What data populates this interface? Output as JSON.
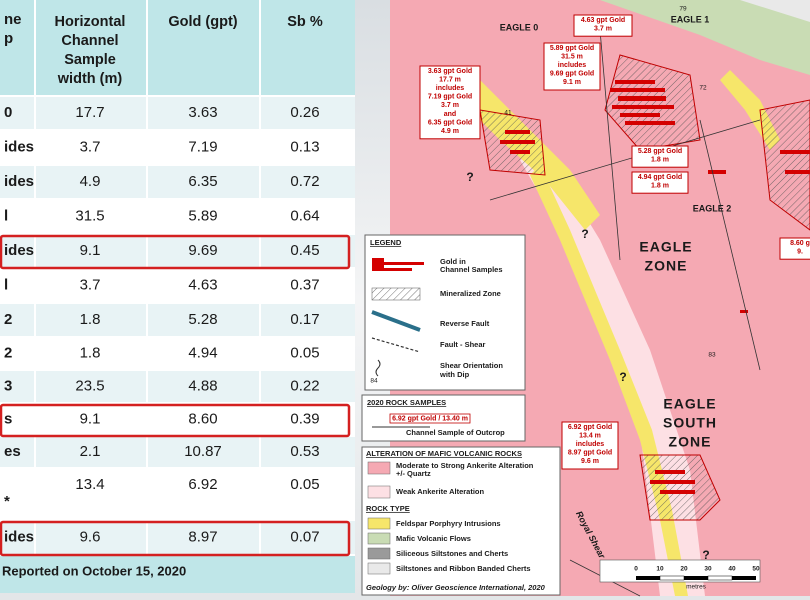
{
  "table": {
    "headers": [
      [
        "ne",
        "p"
      ],
      [
        "Horizontal",
        "Channel",
        "Sample",
        "width (m)"
      ],
      [
        "Gold (gpt)"
      ],
      [
        "Sb %"
      ]
    ],
    "rows": [
      [
        "0",
        "17.7",
        "3.63",
        "0.26"
      ],
      [
        "ides",
        "3.7",
        "7.19",
        "0.13"
      ],
      [
        "ides",
        "4.9",
        "6.35",
        "0.72"
      ],
      [
        "l",
        "31.5",
        "5.89",
        "0.64"
      ],
      [
        "ides",
        "9.1",
        "9.69",
        "0.45"
      ],
      [
        "l",
        "3.7",
        "4.63",
        "0.37"
      ],
      [
        "2",
        "1.8",
        "5.28",
        "0.17"
      ],
      [
        "2",
        "1.8",
        "4.94",
        "0.05"
      ],
      [
        "3",
        "23.5",
        "4.88",
        "0.22"
      ],
      [
        "s",
        "9.1",
        "8.60",
        "0.39"
      ],
      [
        "es",
        "2.1",
        "10.87",
        "0.53"
      ],
      [
        "*",
        "13.4",
        "6.92",
        "0.05"
      ],
      [
        "ides",
        "9.6",
        "8.97",
        "0.07"
      ]
    ],
    "footnote": "Reported on October 15, 2020"
  },
  "map": {
    "zones": [
      "EAGLE 0",
      "EAGLE 1",
      "EAGLE 2",
      [
        "EAGLE",
        "ZONE"
      ],
      [
        "EAGLE",
        "SOUTH",
        "ZONE"
      ]
    ],
    "callouts": [
      {
        "lines": [
          "3.63 gpt Gold",
          "17.7 m",
          "includes",
          "7.19 gpt Gold",
          "3.7 m",
          "and",
          "6.35 gpt Gold",
          "4.9 m"
        ]
      },
      {
        "lines": [
          "4.63 gpt Gold",
          "3.7 m"
        ]
      },
      {
        "lines": [
          "5.89 gpt Gold",
          "31.5 m",
          "includes",
          "9.69 gpt Gold",
          "9.1 m"
        ]
      },
      {
        "lines": [
          "5.28 gpt Gold",
          "1.8 m"
        ]
      },
      {
        "lines": [
          "4.94 gpt Gold",
          "1.8 m"
        ]
      },
      {
        "lines": [
          "8.60 g",
          "9."
        ]
      },
      {
        "lines": [
          "6.92 gpt Gold",
          "13.4 m",
          "includes",
          "8.97 gpt Gold",
          "9.6 m"
        ]
      }
    ],
    "dips": [
      "79",
      "72",
      "41",
      "83"
    ],
    "shear": "Royal Shear",
    "legend": {
      "title": "LEGEND",
      "items": [
        [
          "Gold in",
          "Channel Samples"
        ],
        [
          "Mineralized Zone"
        ],
        [
          "Reverse Fault"
        ],
        [
          "Fault -  Shear"
        ],
        [
          "Shear Orientation",
          "with Dip"
        ]
      ],
      "dip": "84"
    },
    "samples": {
      "title": "2020 ROCK SAMPLES",
      "label": "6.92 gpt Gold / 13.40 m",
      "item": "Channel Sample of Outcrop"
    },
    "alteration": {
      "title": "ALTERATION OF MAFIC VOLCANIC ROCKS",
      "items": [
        [
          "Moderate  to Strong Ankerite Alteration",
          "+/- Quartz"
        ],
        [
          "Weak Ankerite Alteration"
        ]
      ],
      "rock_title": "ROCK TYPE",
      "rocks": [
        "Feldspar Porphyry Intrusions",
        "Mafic Volcanic Flows",
        "Siliceous Siltstones and Cherts",
        "Siltstones and Ribbon Banded Cherts"
      ],
      "credit": "Geology by: Oliver Geoscience International, 2020"
    },
    "scale": {
      "ticks": [
        "0",
        "10",
        "20",
        "30",
        "40",
        "50"
      ],
      "unit": "metres"
    }
  }
}
